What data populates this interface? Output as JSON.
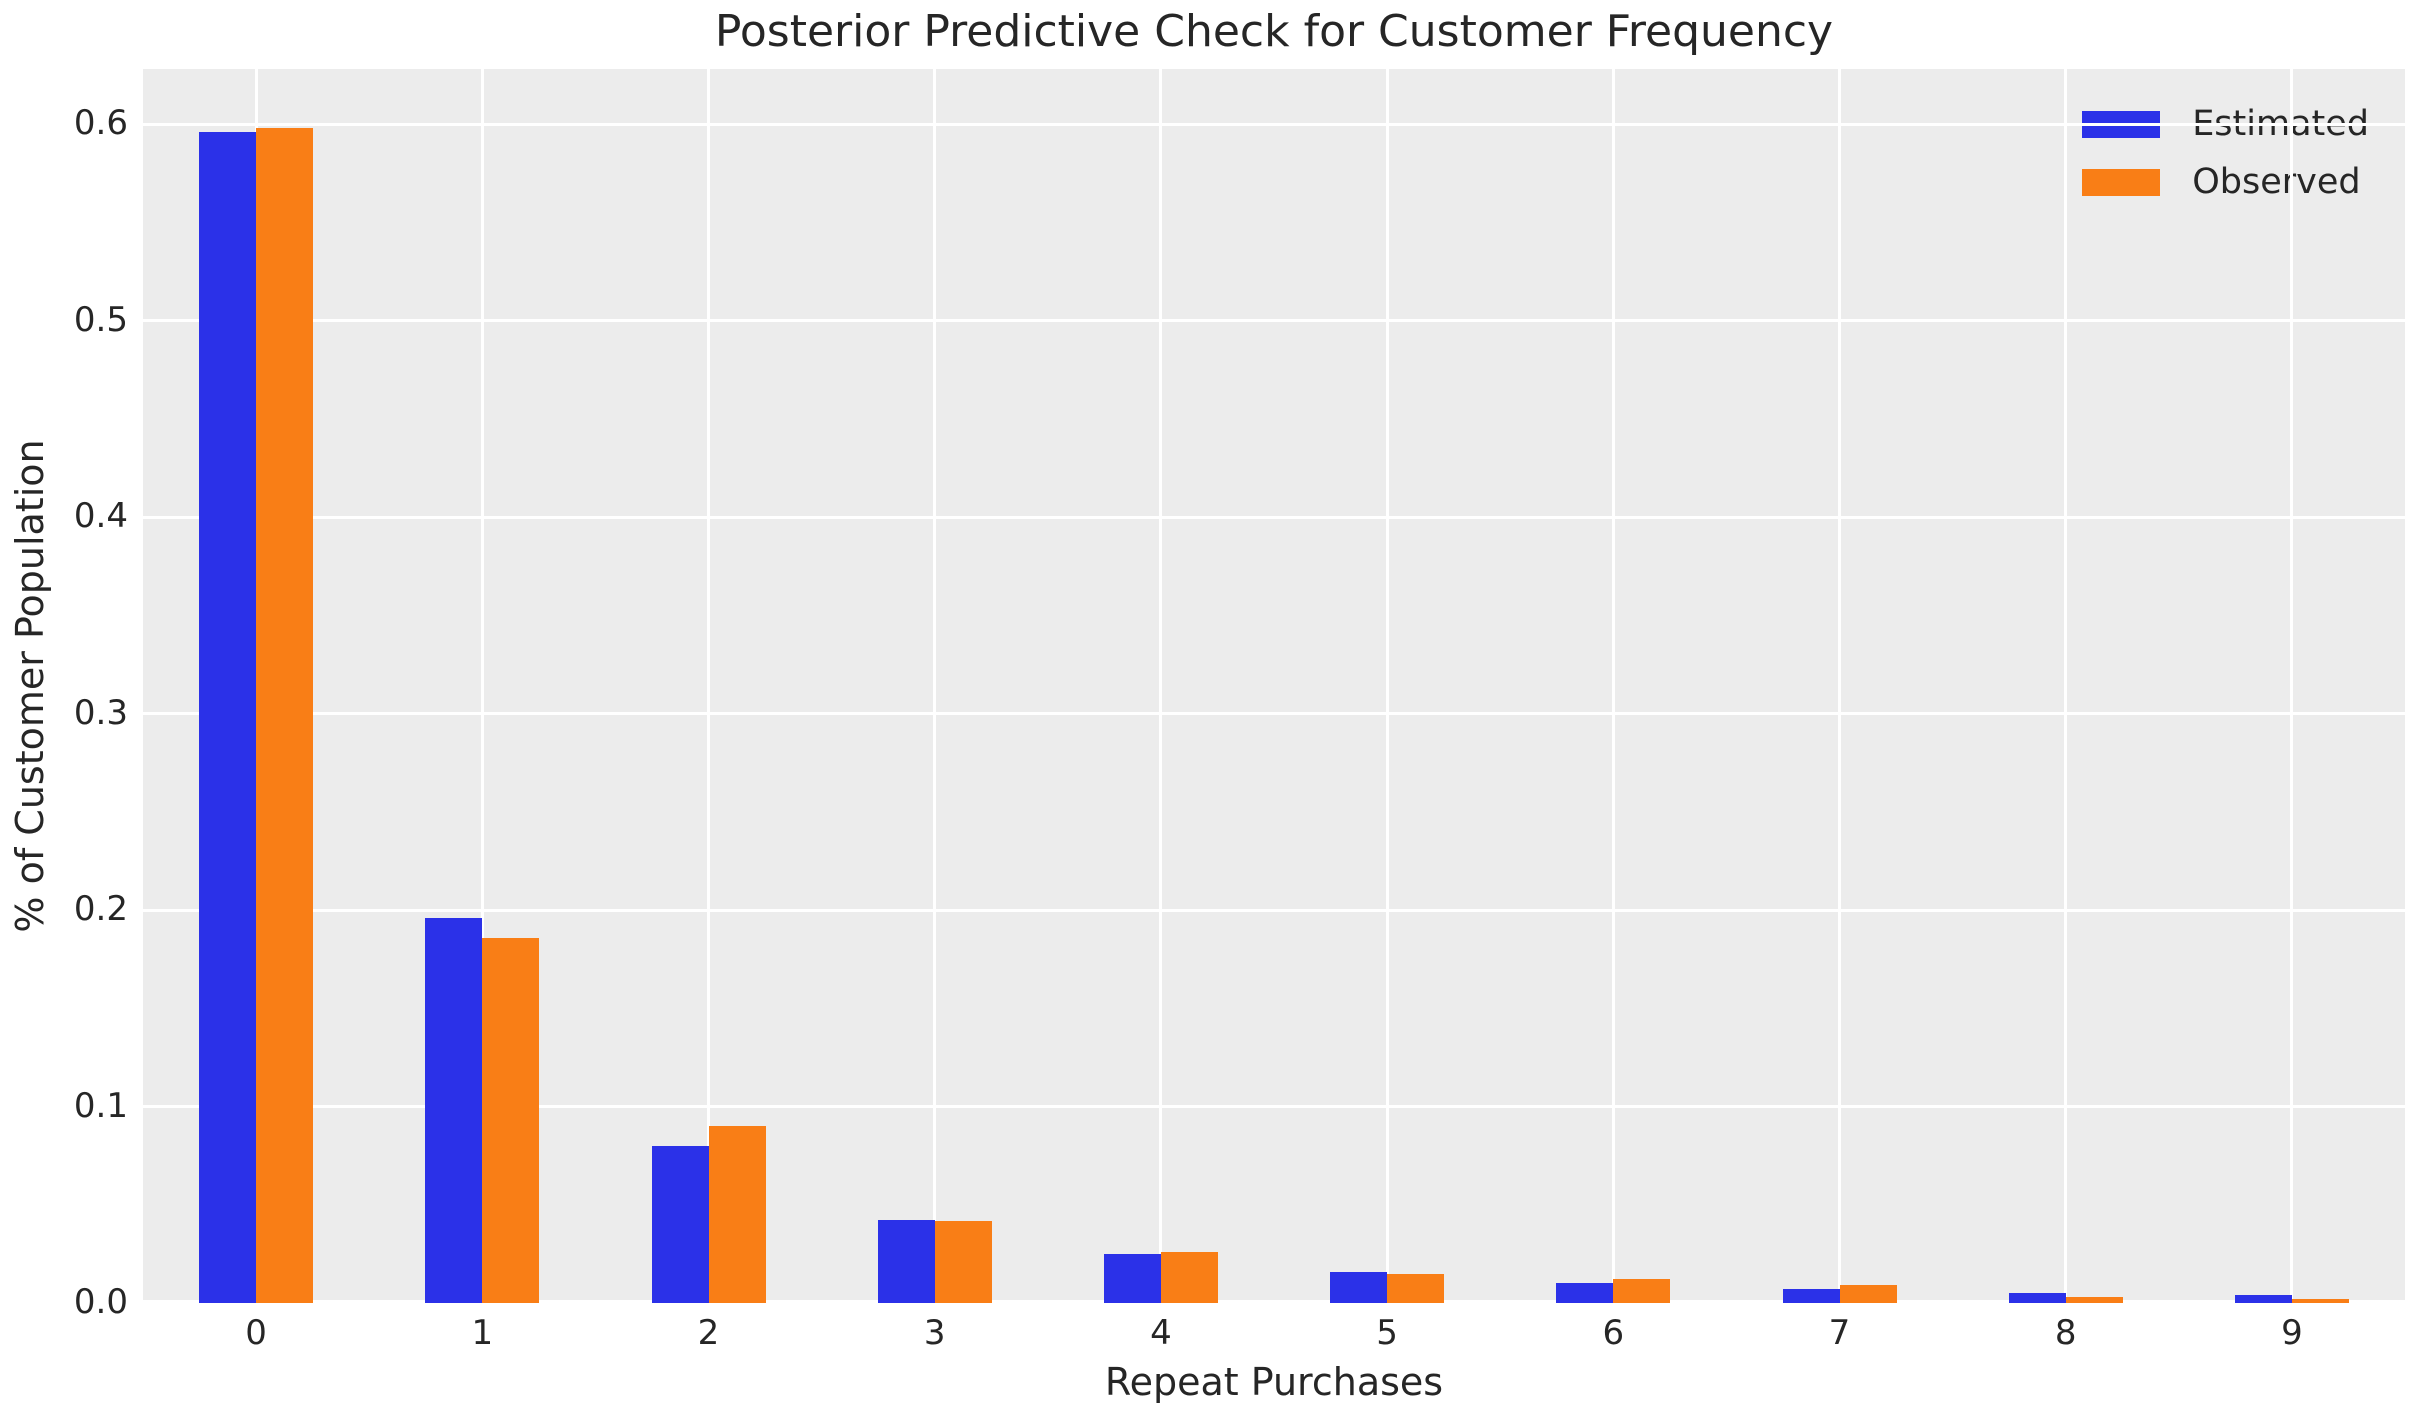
{
  "chart_data": {
    "type": "bar",
    "title": "Posterior Predictive Check for Customer Frequency",
    "xlabel": "Repeat Purchases",
    "ylabel": "% of Customer Population",
    "categories": [
      "0",
      "1",
      "2",
      "3",
      "4",
      "5",
      "6",
      "7",
      "8",
      "9"
    ],
    "series": [
      {
        "name": "Estimated",
        "color": "#2b31e8",
        "values": [
          0.596,
          0.196,
          0.08,
          0.042,
          0.025,
          0.016,
          0.01,
          0.007,
          0.005,
          0.004
        ]
      },
      {
        "name": "Observed",
        "color": "#f97e16",
        "values": [
          0.598,
          0.186,
          0.09,
          0.0415,
          0.026,
          0.015,
          0.012,
          0.009,
          0.003,
          0.002
        ]
      }
    ],
    "ylim": [
      0,
      0.628
    ],
    "yticks": [
      0.0,
      0.1,
      0.2,
      0.3,
      0.4,
      0.5,
      0.6
    ],
    "ytick_labels": [
      "0.0",
      "0.1",
      "0.2",
      "0.3",
      "0.4",
      "0.5",
      "0.6"
    ],
    "grid": true,
    "legend_position": "upper right",
    "colors": {
      "plot_background": "#ececec",
      "figure_background": "#ffffff",
      "gridline": "#ffffff",
      "text": "#262626"
    }
  }
}
